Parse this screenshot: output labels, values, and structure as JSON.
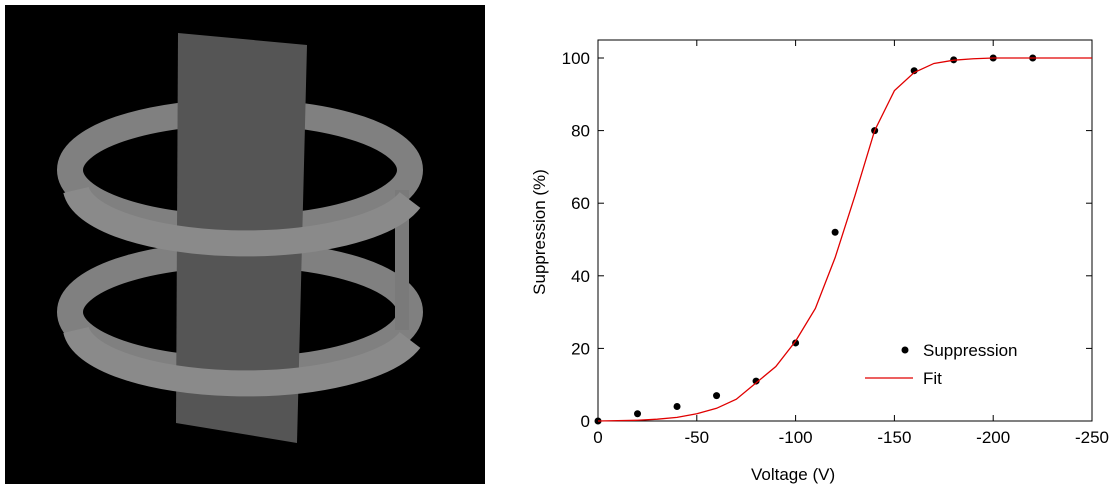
{
  "chart_data": {
    "type": "scatter",
    "x_label": "Voltage (V)",
    "y_label": "Suppression (%)",
    "xlim": [
      0,
      -250
    ],
    "ylim": [
      0,
      100
    ],
    "xticks": [
      0,
      -50,
      -100,
      -150,
      -200,
      -250
    ],
    "yticks": [
      0,
      20,
      40,
      60,
      80,
      100
    ],
    "legend": "lower right",
    "series": [
      {
        "name": "Suppression",
        "color": "#000000",
        "kind": "points",
        "x": [
          0,
          -20,
          -40,
          -60,
          -80,
          -100,
          -120,
          -140,
          -160,
          -180,
          -200,
          -220
        ],
        "values": [
          0,
          2,
          4,
          7,
          11,
          21.5,
          52,
          80,
          96.5,
          99.5,
          100,
          100
        ]
      },
      {
        "name": "Fit",
        "color": "#e00000",
        "kind": "line",
        "x": [
          0,
          -10,
          -20,
          -30,
          -40,
          -50,
          -60,
          -70,
          -80,
          -90,
          -100,
          -110,
          -120,
          -130,
          -140,
          -150,
          -160,
          -170,
          -180,
          -190,
          -200,
          -210,
          -220,
          -230,
          -240,
          -250
        ],
        "values": [
          0,
          0.1,
          0.2,
          0.5,
          1,
          2,
          3.5,
          6,
          10.5,
          15,
          22,
          31,
          45,
          62,
          80,
          91,
          96,
          98.5,
          99.4,
          99.8,
          100,
          100,
          100,
          100,
          100,
          100
        ]
      }
    ]
  }
}
